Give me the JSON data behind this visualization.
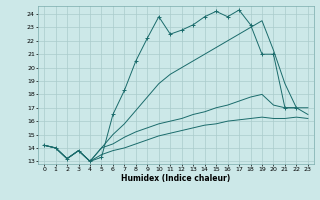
{
  "xlabel": "Humidex (Indice chaleur)",
  "bg_color": "#cce8e8",
  "grid_color": "#aacccc",
  "line_color": "#1a6b6b",
  "xlim": [
    -0.5,
    23.5
  ],
  "ylim": [
    12.8,
    24.6
  ],
  "xticks": [
    0,
    1,
    2,
    3,
    4,
    5,
    6,
    7,
    8,
    9,
    10,
    11,
    12,
    13,
    14,
    15,
    16,
    17,
    18,
    19,
    20,
    21,
    22,
    23
  ],
  "yticks": [
    13,
    14,
    15,
    16,
    17,
    18,
    19,
    20,
    21,
    22,
    23,
    24
  ],
  "line1_x": [
    0,
    1,
    2,
    3,
    4,
    5,
    6,
    7,
    8,
    9,
    10,
    11,
    12,
    13,
    14,
    15,
    16,
    17,
    18,
    19,
    20,
    21,
    22
  ],
  "line1_y": [
    14.2,
    14.0,
    13.2,
    13.8,
    13.0,
    13.3,
    16.5,
    18.3,
    20.5,
    22.2,
    23.8,
    22.5,
    22.8,
    23.2,
    23.8,
    24.2,
    23.8,
    24.3,
    23.2,
    21.0,
    21.0,
    17.0,
    17.0
  ],
  "line2_x": [
    0,
    1,
    2,
    3,
    4,
    5,
    6,
    7,
    8,
    9,
    10,
    11,
    12,
    13,
    14,
    15,
    16,
    17,
    18,
    19,
    20,
    21,
    22,
    23
  ],
  "line2_y": [
    14.2,
    14.0,
    13.2,
    13.8,
    13.0,
    14.0,
    15.0,
    15.8,
    16.8,
    17.8,
    18.8,
    19.5,
    20.0,
    20.5,
    21.0,
    21.5,
    22.0,
    22.5,
    23.0,
    23.5,
    21.3,
    18.8,
    17.0,
    17.0
  ],
  "line3_x": [
    0,
    1,
    2,
    3,
    4,
    5,
    6,
    7,
    8,
    9,
    10,
    11,
    12,
    13,
    14,
    15,
    16,
    17,
    18,
    19,
    20,
    21,
    22,
    23
  ],
  "line3_y": [
    14.2,
    14.0,
    13.2,
    13.8,
    13.0,
    14.0,
    14.3,
    14.8,
    15.2,
    15.5,
    15.8,
    16.0,
    16.2,
    16.5,
    16.7,
    17.0,
    17.2,
    17.5,
    17.8,
    18.0,
    17.2,
    17.0,
    17.0,
    16.5
  ],
  "line4_x": [
    0,
    1,
    2,
    3,
    4,
    5,
    6,
    7,
    8,
    9,
    10,
    11,
    12,
    13,
    14,
    15,
    16,
    17,
    18,
    19,
    20,
    21,
    22,
    23
  ],
  "line4_y": [
    14.2,
    14.0,
    13.2,
    13.8,
    13.0,
    13.5,
    13.8,
    14.0,
    14.3,
    14.6,
    14.9,
    15.1,
    15.3,
    15.5,
    15.7,
    15.8,
    16.0,
    16.1,
    16.2,
    16.3,
    16.2,
    16.2,
    16.3,
    16.2
  ]
}
